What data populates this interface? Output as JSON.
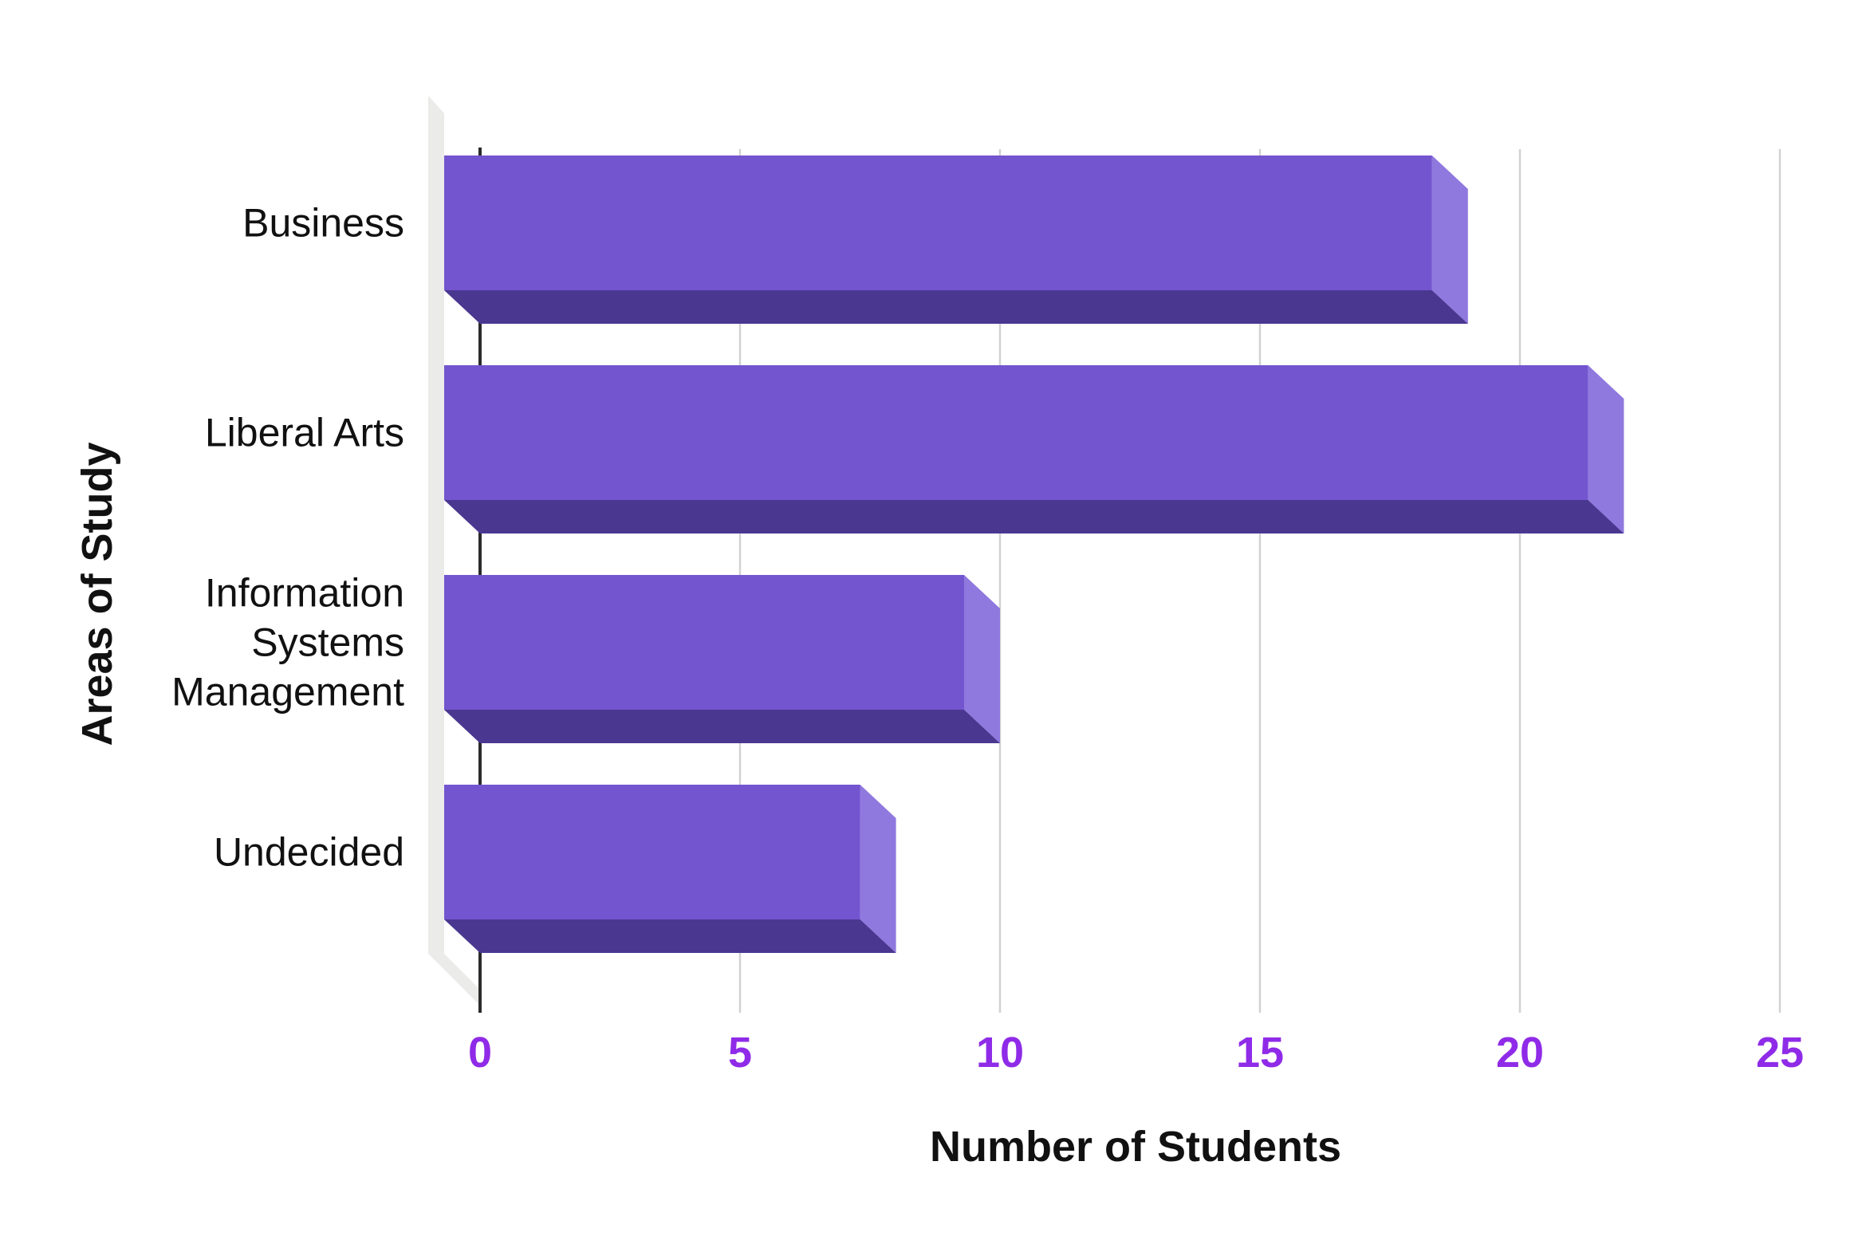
{
  "chart_data": {
    "type": "bar",
    "orientation": "horizontal",
    "style": "3d",
    "title": "",
    "xlabel": "Number of Students",
    "ylabel": "Areas of Study",
    "categories": [
      "Business",
      "Liberal Arts",
      "Information Systems Management",
      "Undecided"
    ],
    "categories_lines": [
      [
        "Business"
      ],
      [
        "Liberal Arts"
      ],
      [
        "Information",
        "Systems",
        "Management"
      ],
      [
        "Undecided"
      ]
    ],
    "values": [
      19,
      22,
      10,
      8
    ],
    "xlim": [
      0,
      25
    ],
    "xticks": [
      0,
      5,
      10,
      15,
      20,
      25
    ],
    "grid": true,
    "legend": "none",
    "colors": {
      "bar_front": "#7355CF",
      "bar_side": "#8F78DE",
      "bar_bottom": "#4A3790",
      "tick_label": "#8F2BE8",
      "gridline": "#D2D2D2",
      "axis_line": "#2B2B2B",
      "wall": "#EBEBE9",
      "text": "#111111",
      "background": "#FFFFFF"
    }
  }
}
